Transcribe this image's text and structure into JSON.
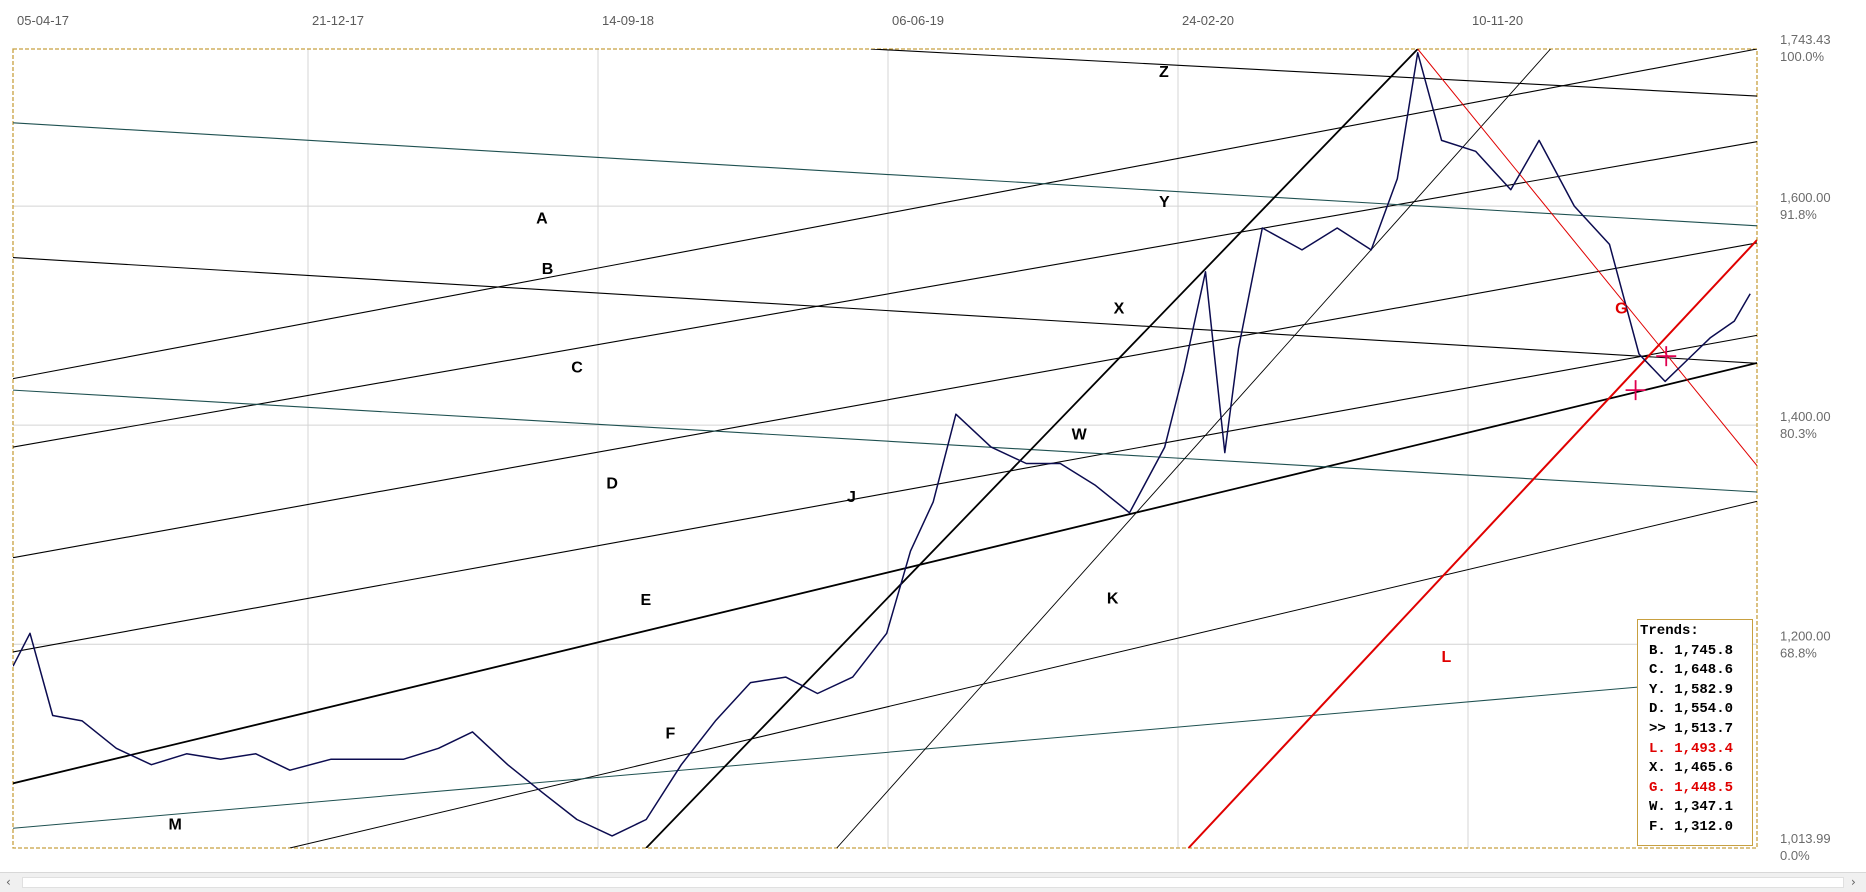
{
  "chart_data": {
    "type": "line",
    "date_ticks": [
      "05-04-17",
      "21-12-17",
      "14-09-18",
      "06-06-19",
      "24-02-20",
      "10-11-20"
    ],
    "y_ticks": [
      {
        "value": 1743.43,
        "label": "1,743.43",
        "pct": "100.0%"
      },
      {
        "value": 1600.0,
        "label": "1,600.00",
        "pct": "91.8%"
      },
      {
        "value": 1400.0,
        "label": "1,400.00",
        "pct": "80.3%"
      },
      {
        "value": 1200.0,
        "label": "1,200.00",
        "pct": "68.8%"
      },
      {
        "value": 1013.99,
        "label": "1,013.99",
        "pct": "0.0%"
      }
    ],
    "ylim": [
      1013.99,
      1743.43
    ],
    "xlim": [
      "2017-04-05",
      "2021-06-20"
    ],
    "grid": true,
    "series": [
      {
        "color": "#0c0c50",
        "x": [
          "2017-04-05",
          "2017-04-20",
          "2017-05-10",
          "2017-06-05",
          "2017-07-05",
          "2017-08-05",
          "2017-09-05",
          "2017-10-05",
          "2017-11-05",
          "2017-12-05",
          "2018-01-10",
          "2018-02-10",
          "2018-03-15",
          "2018-04-15",
          "2018-05-15",
          "2018-06-15",
          "2018-07-15",
          "2018-08-15",
          "2018-09-15",
          "2018-10-15",
          "2018-11-15",
          "2018-12-15",
          "2019-01-15",
          "2019-02-15",
          "2019-03-15",
          "2019-04-15",
          "2019-05-15",
          "2019-06-05",
          "2019-06-25",
          "2019-07-15",
          "2019-08-15",
          "2019-09-15",
          "2019-10-15",
          "2019-11-15",
          "2019-12-15",
          "2020-01-15",
          "2020-02-01",
          "2020-02-20",
          "2020-03-08",
          "2020-03-20",
          "2020-04-10",
          "2020-05-15",
          "2020-06-15",
          "2020-07-15",
          "2020-08-07",
          "2020-08-25",
          "2020-09-15",
          "2020-10-15",
          "2020-11-15",
          "2020-12-10",
          "2021-01-10",
          "2021-02-10",
          "2021-03-08",
          "2021-03-31",
          "2021-04-20",
          "2021-05-10",
          "2021-05-31",
          "2021-06-14"
        ],
        "y": [
          1180,
          1210,
          1135,
          1130,
          1105,
          1090,
          1100,
          1095,
          1100,
          1085,
          1095,
          1095,
          1095,
          1105,
          1120,
          1090,
          1065,
          1040,
          1025,
          1040,
          1090,
          1130,
          1165,
          1170,
          1155,
          1170,
          1210,
          1285,
          1330,
          1410,
          1380,
          1365,
          1365,
          1345,
          1320,
          1380,
          1450,
          1540,
          1375,
          1470,
          1580,
          1560,
          1580,
          1560,
          1625,
          1740,
          1660,
          1650,
          1615,
          1660,
          1600,
          1565,
          1465,
          1440,
          1460,
          1480,
          1495,
          1520
        ]
      }
    ],
    "trendlines": [
      {
        "label": "Z",
        "color": "#000000",
        "x1": "2019-05-01",
        "y1": 1743.43,
        "x2": "2021-06-20",
        "y2": 1700.5
      },
      {
        "label": "A",
        "color": "#000000",
        "x1": "2017-04-05",
        "y1": 1442.5,
        "x2": "2021-06-20",
        "y2": 1743.43
      },
      {
        "label": "B",
        "color": "#000000",
        "x1": "2017-04-05",
        "y1": 1380.0,
        "x2": "2021-06-20",
        "y2": 1658.8
      },
      {
        "label": "C",
        "color": "#000000",
        "x1": "2017-04-05",
        "y1": 1279.0,
        "x2": "2021-06-20",
        "y2": 1566.4
      },
      {
        "label": "D",
        "color": "#000000",
        "x1": "2017-04-05",
        "y1": 1193.0,
        "x2": "2021-06-20",
        "y2": 1482.0
      },
      {
        "label": "E",
        "color": "#000000",
        "x1": "2017-04-05",
        "y1": 1073.0,
        "x2": "2021-06-20",
        "y2": 1456.8
      },
      {
        "label": "F",
        "color": "#000000",
        "x1": "2017-12-05",
        "y1": 1013.99,
        "x2": "2021-06-20",
        "y2": 1330.5
      },
      {
        "label": "M",
        "color": "#1e5050",
        "x1": "2017-04-05",
        "y1": 1032.0,
        "x2": "2021-05-31",
        "y2": 1168.5
      },
      {
        "label": "W",
        "color": "#1e5050",
        "x1": "2017-04-05",
        "y1": 1432.0,
        "x2": "2021-06-20",
        "y2": 1339.0
      },
      {
        "label": "X",
        "color": "#000000",
        "x1": "2017-04-05",
        "y1": 1553.0,
        "x2": "2021-06-20",
        "y2": 1456.5
      },
      {
        "label": "Y",
        "color": "#1e5050",
        "x1": "2017-04-05",
        "y1": 1676.0,
        "x2": "2021-06-20",
        "y2": 1582.0
      },
      {
        "label": "J",
        "color": "#000000",
        "x1": "2018-10-15",
        "y1": 1013.99,
        "x2": "2020-08-25",
        "y2": 1743.43
      },
      {
        "label": "K",
        "color": "#000000",
        "x1": "2019-04-01",
        "y1": 1013.99,
        "x2": "2020-12-20",
        "y2": 1743.43
      },
      {
        "label": "L",
        "color": "#e00000",
        "x1": "2020-02-05",
        "y1": 1013.99,
        "x2": "2021-06-20",
        "y2": 1569.0
      },
      {
        "label": "G",
        "color": "#e00000",
        "x1": "2020-08-25",
        "y1": 1743.43,
        "x2": "2021-06-20",
        "y2": 1363.0
      }
    ],
    "line_label_positions": [
      {
        "label": "Z",
        "x": "2020-01-10",
        "y": 1718
      },
      {
        "label": "A",
        "x": "2018-07-10",
        "y": 1584
      },
      {
        "label": "B",
        "x": "2018-07-15",
        "y": 1538
      },
      {
        "label": "C",
        "x": "2018-08-10",
        "y": 1448
      },
      {
        "label": "D",
        "x": "2018-09-10",
        "y": 1342
      },
      {
        "label": "E",
        "x": "2018-10-10",
        "y": 1236
      },
      {
        "label": "F",
        "x": "2018-11-01",
        "y": 1114
      },
      {
        "label": "M",
        "x": "2017-08-20",
        "y": 1031
      },
      {
        "label": "W",
        "x": "2019-10-25",
        "y": 1387
      },
      {
        "label": "X",
        "x": "2019-12-01",
        "y": 1502
      },
      {
        "label": "Y",
        "x": "2020-01-10",
        "y": 1599
      },
      {
        "label": "J",
        "x": "2019-04-10",
        "y": 1330
      },
      {
        "label": "K",
        "x": "2019-11-25",
        "y": 1237
      },
      {
        "label": "L",
        "x": "2020-09-15",
        "y": 1184
      },
      {
        "label": "G",
        "x": "2021-02-15",
        "y": 1502
      }
    ],
    "intersection_markers": [
      {
        "x": "2021-03-05",
        "y": 1432
      },
      {
        "x": "2021-04-01",
        "y": 1463
      }
    ],
    "legend": {
      "title": "Trends:",
      "placement": "bottom-right",
      "rows": [
        {
          "text": "B. 1,745.8",
          "color": "#000000"
        },
        {
          "text": "C. 1,648.6",
          "color": "#000000"
        },
        {
          "text": "Y. 1,582.9",
          "color": "#000000"
        },
        {
          "text": "D. 1,554.0",
          "color": "#000000"
        },
        {
          "text": ">> 1,513.7",
          "color": "#000000"
        },
        {
          "text": "L. 1,493.4",
          "color": "#e00000"
        },
        {
          "text": "X. 1,465.6",
          "color": "#000000"
        },
        {
          "text": "G. 1,448.5",
          "color": "#e00000"
        },
        {
          "text": "W. 1,347.1",
          "color": "#000000"
        },
        {
          "text": "F. 1,312.0",
          "color": "#000000"
        }
      ]
    }
  },
  "scrollbar": {
    "left_arrow": "‹",
    "right_arrow": "›"
  }
}
